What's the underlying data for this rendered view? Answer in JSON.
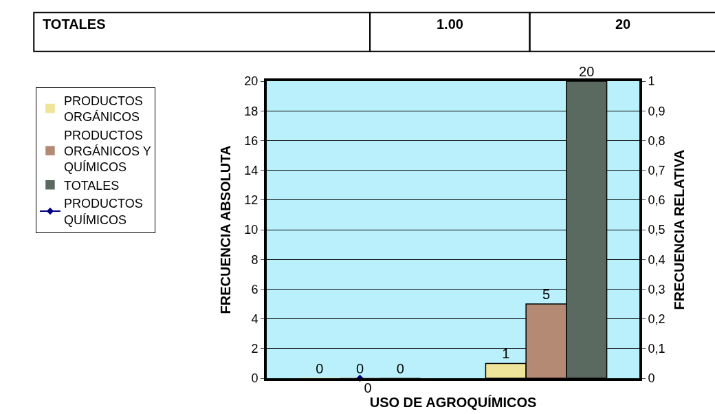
{
  "chart_data": {
    "type": "bar",
    "xlabel": "USO DE AGROQUÍMICOS",
    "ylabel": "FRECUENCIA ABSOLUTA",
    "y2label": "FRECUENCIA RELATIVA",
    "annotations": [
      "TOTALES",
      "1.00",
      "20"
    ],
    "categories": [
      null,
      null
    ],
    "series": [
      {
        "name": "PRODUCTOS ORGÁNICOS",
        "color": "#efe59a",
        "values": [
          0,
          1
        ]
      },
      {
        "name": "PRODUCTOS ORGÁNICOS Y QUÍMICOS",
        "color": "#b48a74",
        "values": [
          0,
          5
        ]
      },
      {
        "name": "TOTALES",
        "color": "#5a6a60",
        "values": [
          0,
          20
        ]
      },
      {
        "name": "PRODUCTOS QUÍMICOS",
        "type": "line",
        "axis": "y2",
        "color": "#000080",
        "marker": "diamond",
        "values": [
          0,
          null
        ],
        "value_labels": [
          "0",
          null
        ]
      }
    ],
    "data_labels": true,
    "ylim": [
      0,
      20
    ],
    "yticks": [
      0,
      2,
      4,
      6,
      8,
      10,
      12,
      14,
      16,
      18,
      20
    ],
    "y2lim": [
      0,
      1
    ],
    "y2ticks": [
      0,
      {
        "value": 0.1,
        "label": "0,1"
      },
      {
        "value": 0.2,
        "label": "0,2"
      },
      {
        "value": 0.3,
        "label": "0,3"
      },
      {
        "value": 0.4,
        "label": "0,4"
      },
      {
        "value": 0.5,
        "label": "0,5"
      },
      {
        "value": 0.6,
        "label": "0,6"
      },
      {
        "value": 0.7,
        "label": "0,7"
      },
      {
        "value": 0.8,
        "label": "0,8"
      },
      {
        "value": 0.9,
        "label": "0,9"
      },
      1
    ],
    "grid": "y",
    "legend": "left"
  }
}
